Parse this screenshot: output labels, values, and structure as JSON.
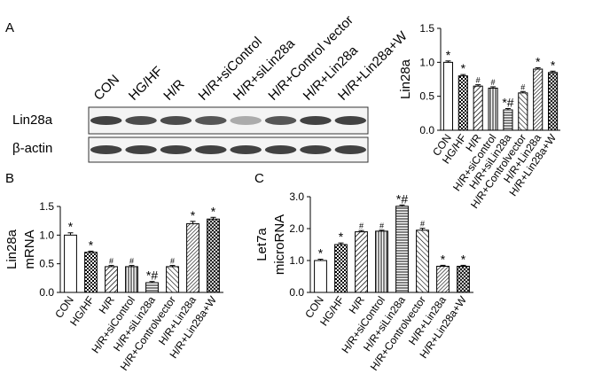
{
  "panel_labels": [
    "A",
    "B",
    "C"
  ],
  "blot": {
    "lanes": [
      "CON",
      "HG/HF",
      "H/R",
      "H/R+siControl",
      "H/R+siLin28a",
      "H/R+Control vector",
      "H/R+Lin28a",
      "H/R+Lin28a+W"
    ],
    "rows": [
      "Lin28a",
      "β-actin"
    ]
  },
  "chart_data": [
    {
      "type": "bar",
      "ylabel": [
        "Lin28a"
      ],
      "categories": [
        "CON",
        "HG/HF",
        "H/R",
        "H/R+siControl",
        "H/R+siLin28a",
        "H/R+Controlvector",
        "H/R+Lin28a",
        "H/R+Lin28a+W"
      ],
      "values": [
        1.0,
        0.8,
        0.65,
        0.62,
        0.3,
        0.55,
        0.9,
        0.85
      ],
      "errors": [
        0.02,
        0.02,
        0.02,
        0.02,
        0.02,
        0.02,
        0.02,
        0.02
      ],
      "annotations": [
        "*",
        "*",
        "#",
        "#",
        "*#",
        "#",
        "*",
        "*"
      ],
      "ylim": [
        0,
        1.5
      ],
      "yticks": [
        {
          "value": 0,
          "label": "0.0"
        },
        0.5,
        {
          "value": 1,
          "label": "1.0"
        },
        1.5
      ]
    },
    {
      "type": "bar",
      "ylabel": [
        "Lin28a",
        "mRNA"
      ],
      "categories": [
        "CON",
        "HG/HF",
        "H/R",
        "H/R+siControl",
        "H/R+siLin28a",
        "H/R+Controlvector",
        "H/R+Lin28a",
        "H/R+Lin28a+W"
      ],
      "values": [
        1.0,
        0.7,
        0.45,
        0.45,
        0.17,
        0.45,
        1.2,
        1.28
      ],
      "errors": [
        0.04,
        0.02,
        0.02,
        0.02,
        0.02,
        0.02,
        0.04,
        0.03
      ],
      "annotations": [
        "*",
        "*",
        "#",
        "#",
        "*#",
        "#",
        "*",
        "*"
      ],
      "ylim": [
        0,
        1.5
      ],
      "yticks": [
        {
          "value": 0,
          "label": "0.0"
        },
        0.5,
        {
          "value": 1,
          "label": "1.0"
        },
        1.5
      ]
    },
    {
      "type": "bar",
      "ylabel": [
        "Let7a",
        "microRNA"
      ],
      "categories": [
        "CON",
        "HG/HF",
        "H/R",
        "H/R+siControl",
        "H/R+siLin28a",
        "H/R+Controlvector",
        "H/R+Lin28a",
        "H/R+Lin28a+W"
      ],
      "values": [
        1.0,
        1.5,
        1.9,
        1.92,
        2.7,
        1.95,
        0.82,
        0.82
      ],
      "errors": [
        0.04,
        0.05,
        0.04,
        0.03,
        0.04,
        0.06,
        0.03,
        0.03
      ],
      "annotations": [
        "*",
        "*",
        "#",
        "#",
        "*#",
        "#",
        "*",
        "*"
      ],
      "ylim": [
        0,
        3
      ],
      "yticks": [
        {
          "value": 0,
          "label": "0.0"
        },
        {
          "value": 1,
          "label": "1.0"
        },
        {
          "value": 2,
          "label": "2.0"
        },
        {
          "value": 3,
          "label": "3.0"
        }
      ]
    }
  ]
}
